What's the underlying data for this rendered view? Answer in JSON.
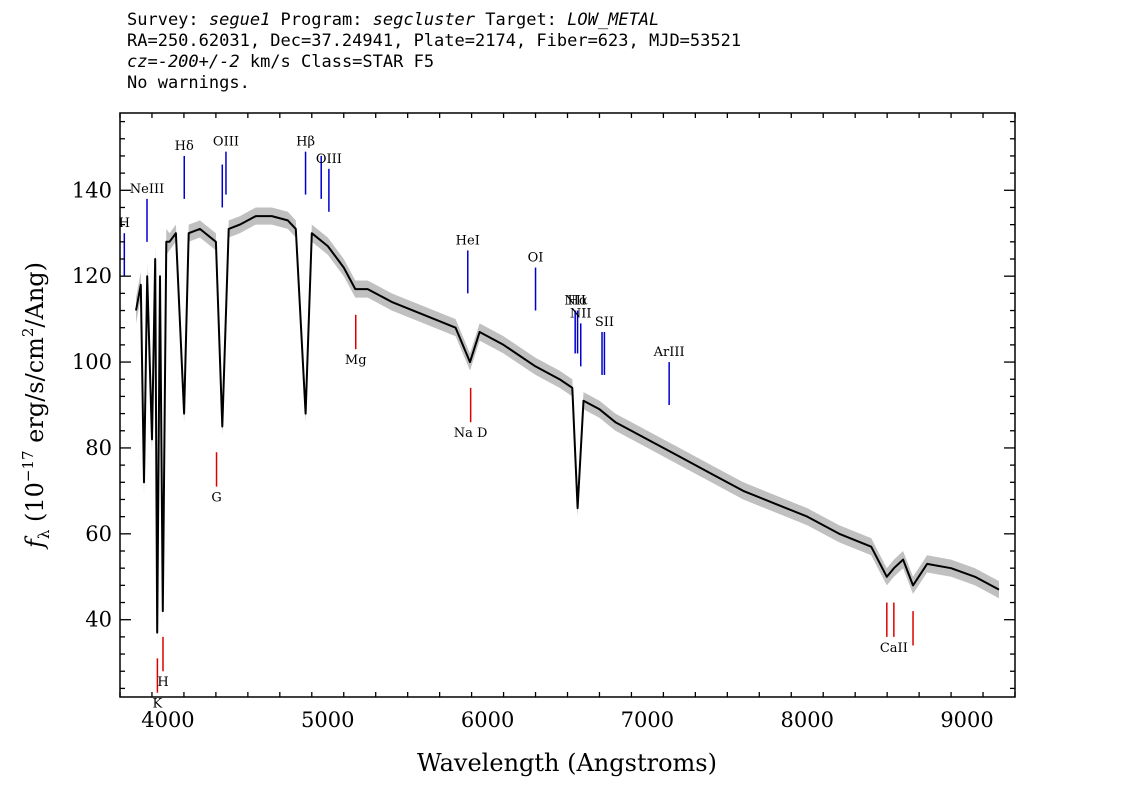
{
  "header": {
    "line1_a": "Survey: ",
    "line1_survey": "segue1",
    "line1_b": " Program: ",
    "line1_program": "segcluster",
    "line1_c": " Target: ",
    "line1_target": "LOW_METAL",
    "line2": "RA=250.62031, Dec=37.24941, Plate=2174, Fiber=623, MJD=53521",
    "line3_cz": "cz=-200+/-2",
    "line3_rest": " km/s Class=STAR F5",
    "line4": "No warnings."
  },
  "chart_data": {
    "type": "line",
    "xlabel": "Wavelength (Angstroms)",
    "ylabel": "f_λ (10^-17 erg/s/cm^2/Ang)",
    "xlim": [
      3700,
      9300
    ],
    "ylim": [
      22,
      158
    ],
    "x_ticks": [
      4000,
      5000,
      6000,
      7000,
      8000,
      9000
    ],
    "y_ticks": [
      40,
      60,
      80,
      100,
      120,
      140
    ],
    "colors": {
      "spectrum": "#000000",
      "error": "#c0c0c0",
      "emission": "#0000cc",
      "absorption": "#dd0000"
    },
    "series": [
      {
        "x": [
          3800,
          3830,
          3850,
          3870,
          3900,
          3920,
          3933,
          3950,
          3968,
          3990,
          4010,
          4050,
          4101,
          4130,
          4200,
          4300,
          4340,
          4380,
          4450,
          4550,
          4650,
          4750,
          4800,
          4861,
          4900,
          5000,
          5100,
          5172,
          5250,
          5400,
          5600,
          5800,
          5890,
          5950,
          6100,
          6300,
          6450,
          6530,
          6563,
          6600,
          6700,
          6800,
          7000,
          7200,
          7400,
          7600,
          7800,
          8000,
          8200,
          8400,
          8498,
          8542,
          8600,
          8662,
          8750,
          8900,
          9050,
          9200
        ],
        "y": [
          112,
          118,
          72,
          120,
          82,
          124,
          37,
          120,
          42,
          128,
          128,
          130,
          88,
          130,
          131,
          128,
          85,
          131,
          132,
          134,
          134,
          133,
          131,
          88,
          130,
          127,
          122,
          117,
          117,
          114,
          111,
          108,
          100,
          107,
          104,
          99,
          96,
          94,
          66,
          91,
          89,
          86,
          82,
          78,
          74,
          70,
          67,
          64,
          60,
          57,
          50,
          52,
          54,
          48,
          53,
          52,
          50,
          47
        ],
        "error": [
          3,
          3,
          3,
          3,
          3,
          3,
          3,
          3,
          3,
          3,
          2,
          2,
          2,
          2,
          2,
          2,
          2,
          2,
          2,
          2,
          2,
          2,
          2,
          2,
          2,
          2,
          2,
          2,
          2,
          2,
          2,
          2,
          2,
          2,
          2,
          2,
          2,
          2,
          2,
          2,
          2,
          2,
          2,
          2,
          2,
          2,
          2,
          2,
          2,
          2,
          2,
          2,
          2,
          2,
          2,
          2,
          2,
          2
        ]
      }
    ],
    "emission_lines": [
      {
        "label": "H",
        "x": 3727
      },
      {
        "label": "NeIII",
        "x": 3869
      },
      {
        "label": "Hδ",
        "x": 4102
      },
      {
        "label": "",
        "x": 4340
      },
      {
        "label": "OIII",
        "x": 4363
      },
      {
        "label": "Hβ",
        "x": 4861
      },
      {
        "label": "",
        "x": 4959
      },
      {
        "label": "OIII",
        "x": 5007
      },
      {
        "label": "HeI",
        "x": 5876
      },
      {
        "label": "OI",
        "x": 6300
      },
      {
        "label": "NII",
        "x": 6548
      },
      {
        "label": "Hα",
        "x": 6563
      },
      {
        "label": "NII",
        "x": 6583
      },
      {
        "label": "",
        "x": 6716
      },
      {
        "label": "SII",
        "x": 6731
      },
      {
        "label": "ArIII",
        "x": 7136
      }
    ],
    "absorption_lines": [
      {
        "label": "K",
        "x": 3934
      },
      {
        "label": "H",
        "x": 3969
      },
      {
        "label": "G",
        "x": 4304
      },
      {
        "label": "Mg",
        "x": 5175
      },
      {
        "label": "Na D",
        "x": 5894
      },
      {
        "label": "",
        "x": 8498
      },
      {
        "label": "CaII",
        "x": 8542
      },
      {
        "label": "",
        "x": 8662
      }
    ]
  }
}
